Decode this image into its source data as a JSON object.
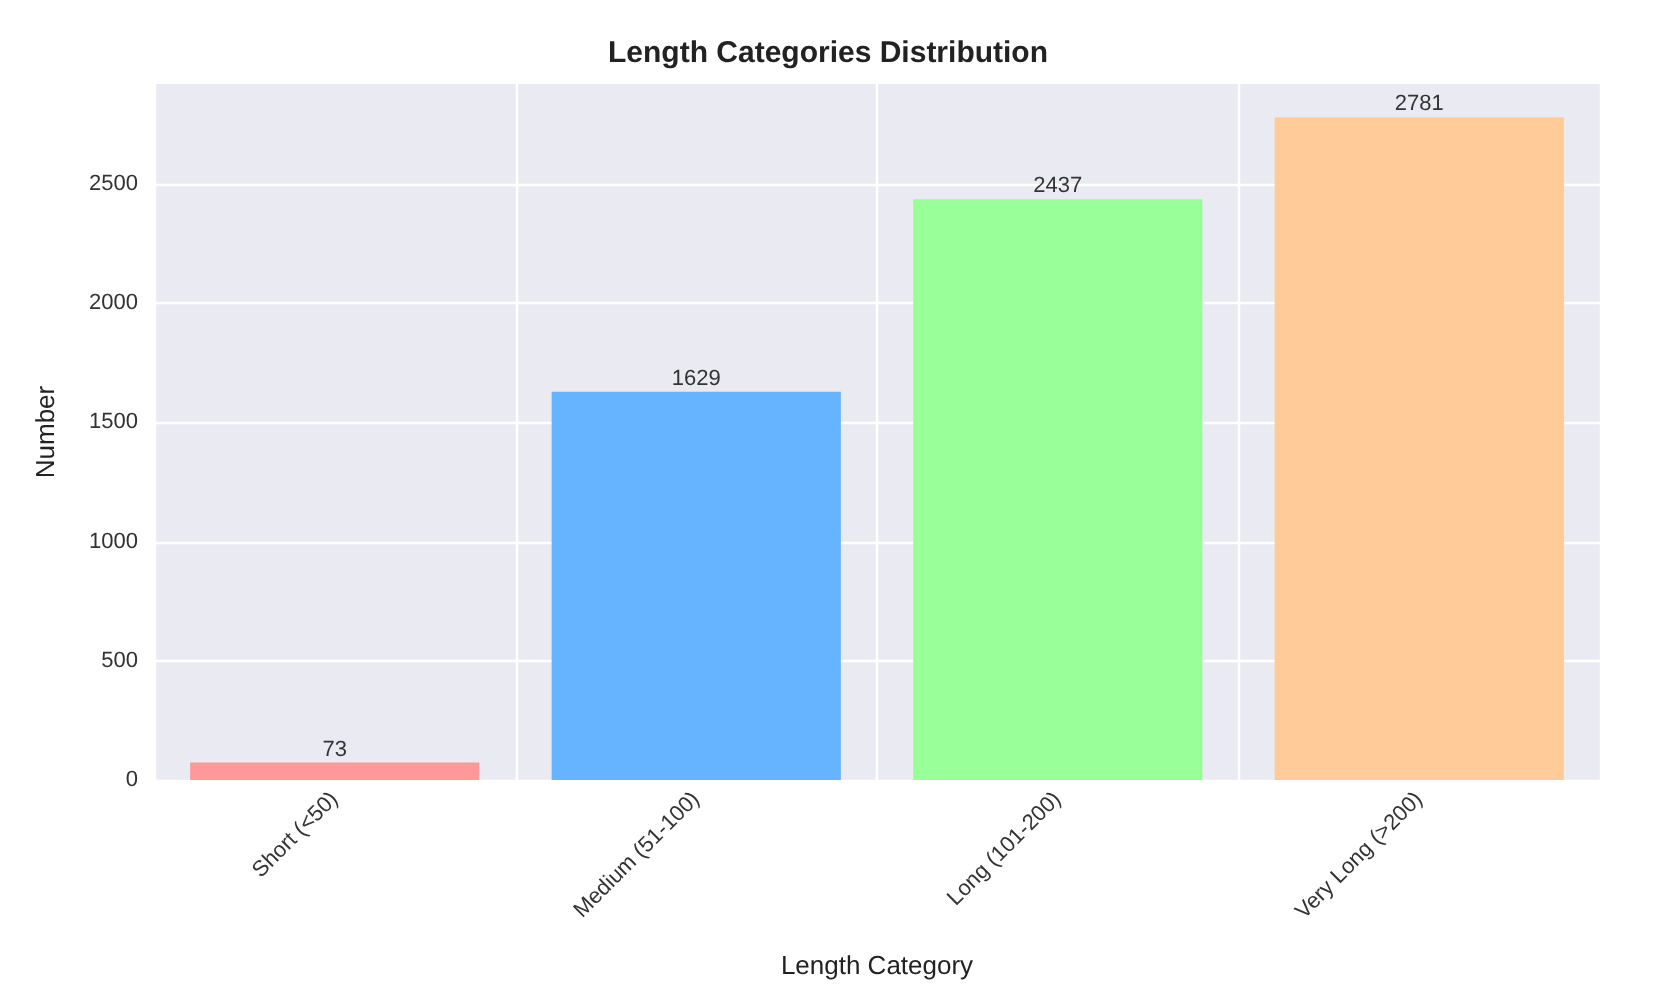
{
  "chart_data": {
    "type": "bar",
    "title": "Length Categories Distribution",
    "xlabel": "Length Category",
    "ylabel": "Number",
    "categories": [
      "Short (<50)",
      "Medium (51-100)",
      "Long (101-200)",
      "Very Long (>200)"
    ],
    "values": [
      73,
      1629,
      2437,
      2781
    ],
    "colors": [
      "#ff9999",
      "#66b3ff",
      "#99ff99",
      "#ffcc99"
    ],
    "ylim": [
      0,
      2920
    ],
    "yticks": [
      0,
      500,
      1000,
      1500,
      2000,
      2500
    ],
    "grid": true,
    "data_labels": true
  }
}
